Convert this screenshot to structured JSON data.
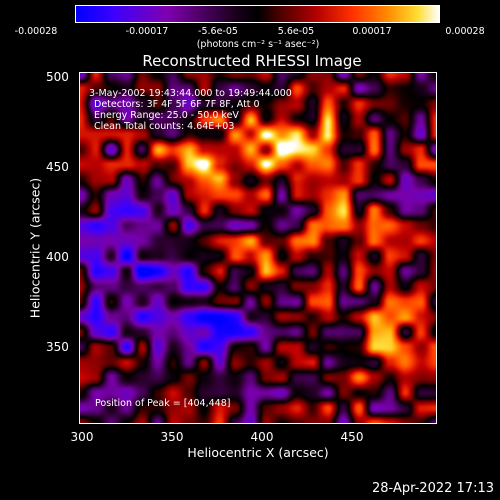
{
  "colorbar": {
    "ticks": [
      "-0.00028",
      "-0.00017",
      "-5.6e-05",
      "5.6e-05",
      "0.00017",
      "0.00028"
    ],
    "units": "(photons cm⁻² s⁻¹ asec⁻²)",
    "range": [
      -0.00028,
      0.00028
    ]
  },
  "title": "Reconstructed RHESSI Image",
  "info": {
    "line1": "3-May-2002 19:43:44.000 to 19:49:44.000",
    "line2": "Detectors: 3F 4F 5F 6F 7F 8F, Att 0",
    "line3": "Energy Range: 25.0 - 50.0 keV",
    "line4": "Clean    Total counts: 4.64E+03"
  },
  "peak_label": "Position of Peak = [404,448]",
  "axes": {
    "xlabel": "Heliocentric X (arcsec)",
    "ylabel": "Heliocentric Y (arcsec)",
    "xticks": [
      "300",
      "350",
      "400",
      "450"
    ],
    "yticks": [
      "350",
      "400",
      "450",
      "500"
    ],
    "xlim": [
      300,
      490
    ],
    "ylim": [
      305,
      502
    ]
  },
  "timestamp": "28-Apr-2022 17:13",
  "colors": {
    "background": "#000000",
    "text": "#ffffff"
  }
}
